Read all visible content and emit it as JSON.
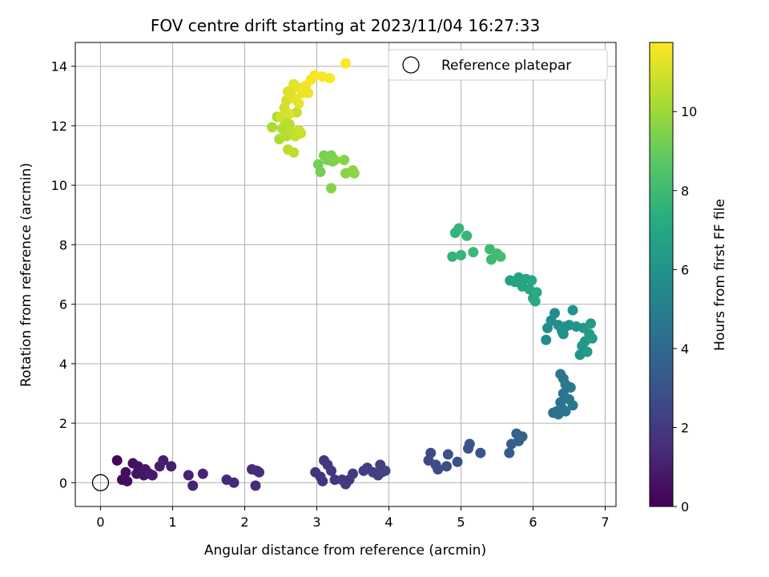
{
  "chart_data": {
    "type": "scatter",
    "title": "FOV centre drift starting at 2023/11/04 16:27:33",
    "xlabel": "Angular distance from reference (arcmin)",
    "ylabel": "Rotation from reference (arcmin)",
    "xlim": [
      -0.35,
      7.15
    ],
    "ylim": [
      -0.8,
      14.8
    ],
    "xticks": [
      0,
      1,
      2,
      3,
      4,
      5,
      6,
      7
    ],
    "yticks": [
      0,
      2,
      4,
      6,
      8,
      10,
      12,
      14
    ],
    "grid": true,
    "legend": {
      "placement": "top-right",
      "entries": [
        "Reference platepar"
      ]
    },
    "reference_point": {
      "x": 0,
      "y": 0
    },
    "colorbar": {
      "label": "Hours from first FF file",
      "range": [
        0,
        11.75
      ],
      "ticks": [
        0,
        2,
        4,
        6,
        8,
        10
      ],
      "colormap": "viridis"
    },
    "points": [
      [
        0.23,
        0.75,
        0.2
      ],
      [
        0.3,
        0.1,
        0.3
      ],
      [
        0.35,
        0.35,
        0.4
      ],
      [
        0.37,
        0.05,
        0.4
      ],
      [
        0.45,
        0.65,
        0.5
      ],
      [
        0.5,
        0.3,
        0.6
      ],
      [
        0.52,
        0.55,
        0.6
      ],
      [
        0.6,
        0.25,
        0.7
      ],
      [
        0.62,
        0.45,
        0.75
      ],
      [
        0.68,
        0.3,
        0.8
      ],
      [
        0.72,
        0.25,
        0.85
      ],
      [
        0.82,
        0.55,
        0.9
      ],
      [
        0.87,
        0.75,
        0.95
      ],
      [
        0.98,
        0.55,
        1.0
      ],
      [
        1.22,
        0.25,
        1.1
      ],
      [
        1.28,
        -0.1,
        1.15
      ],
      [
        1.42,
        0.3,
        1.2
      ],
      [
        1.75,
        0.1,
        1.3
      ],
      [
        1.85,
        0.0,
        1.35
      ],
      [
        2.1,
        0.45,
        1.4
      ],
      [
        2.15,
        -0.1,
        1.45
      ],
      [
        2.17,
        0.4,
        1.5
      ],
      [
        2.2,
        0.35,
        1.5
      ],
      [
        2.98,
        0.35,
        1.7
      ],
      [
        3.05,
        0.2,
        1.75
      ],
      [
        3.08,
        0.05,
        1.8
      ],
      [
        3.1,
        0.75,
        1.8
      ],
      [
        3.15,
        0.6,
        1.85
      ],
      [
        3.2,
        0.4,
        1.9
      ],
      [
        3.25,
        0.1,
        1.9
      ],
      [
        3.35,
        0.1,
        1.95
      ],
      [
        3.4,
        -0.05,
        2.0
      ],
      [
        3.45,
        0.1,
        2.0
      ],
      [
        3.5,
        0.3,
        2.05
      ],
      [
        3.65,
        0.4,
        2.1
      ],
      [
        3.7,
        0.5,
        2.15
      ],
      [
        3.78,
        0.35,
        2.2
      ],
      [
        3.85,
        0.25,
        2.2
      ],
      [
        3.88,
        0.6,
        2.25
      ],
      [
        3.9,
        0.35,
        2.3
      ],
      [
        3.95,
        0.4,
        2.35
      ],
      [
        4.55,
        0.75,
        2.6
      ],
      [
        4.58,
        1.0,
        2.65
      ],
      [
        4.65,
        0.6,
        2.7
      ],
      [
        4.68,
        0.45,
        2.75
      ],
      [
        4.8,
        0.55,
        2.8
      ],
      [
        4.82,
        0.95,
        2.85
      ],
      [
        4.95,
        0.7,
        2.9
      ],
      [
        5.1,
        1.15,
        3.0
      ],
      [
        5.12,
        1.3,
        3.05
      ],
      [
        5.27,
        1.0,
        3.1
      ],
      [
        5.67,
        1.0,
        3.5
      ],
      [
        5.7,
        1.3,
        3.55
      ],
      [
        5.77,
        1.65,
        3.6
      ],
      [
        5.8,
        1.4,
        3.65
      ],
      [
        5.85,
        1.55,
        3.7
      ],
      [
        6.28,
        2.35,
        4.3
      ],
      [
        6.33,
        2.4,
        4.35
      ],
      [
        6.35,
        2.3,
        4.4
      ],
      [
        6.38,
        2.7,
        4.4
      ],
      [
        6.4,
        2.5,
        4.45
      ],
      [
        6.42,
        3.0,
        4.5
      ],
      [
        6.42,
        3.5,
        4.55
      ],
      [
        6.45,
        2.4,
        4.55
      ],
      [
        6.38,
        3.65,
        4.6
      ],
      [
        6.45,
        3.3,
        4.65
      ],
      [
        6.5,
        2.8,
        4.7
      ],
      [
        6.52,
        3.2,
        4.75
      ],
      [
        6.55,
        2.6,
        4.8
      ],
      [
        6.18,
        4.8,
        5.6
      ],
      [
        6.2,
        5.2,
        5.65
      ],
      [
        6.25,
        5.45,
        5.7
      ],
      [
        6.3,
        5.7,
        5.75
      ],
      [
        6.35,
        5.3,
        5.8
      ],
      [
        6.4,
        5.1,
        5.85
      ],
      [
        6.42,
        5.0,
        5.9
      ],
      [
        6.45,
        5.25,
        5.9
      ],
      [
        6.5,
        5.3,
        5.95
      ],
      [
        6.55,
        5.8,
        6.0
      ],
      [
        6.6,
        5.25,
        6.05
      ],
      [
        6.65,
        4.3,
        6.1
      ],
      [
        6.68,
        4.6,
        6.15
      ],
      [
        6.7,
        5.2,
        6.2
      ],
      [
        6.72,
        4.75,
        6.25
      ],
      [
        6.75,
        4.4,
        6.3
      ],
      [
        6.78,
        5.0,
        6.35
      ],
      [
        6.8,
        5.35,
        6.4
      ],
      [
        6.82,
        4.85,
        6.45
      ],
      [
        5.68,
        6.8,
        6.7
      ],
      [
        5.75,
        6.75,
        6.75
      ],
      [
        5.8,
        6.9,
        6.8
      ],
      [
        5.85,
        6.6,
        6.85
      ],
      [
        5.9,
        6.85,
        6.9
      ],
      [
        5.95,
        6.5,
        6.95
      ],
      [
        5.98,
        6.8,
        7.0
      ],
      [
        6.0,
        6.2,
        7.05
      ],
      [
        6.03,
        6.1,
        7.1
      ],
      [
        6.05,
        6.4,
        7.15
      ],
      [
        4.88,
        7.6,
        7.6
      ],
      [
        4.92,
        8.4,
        7.65
      ],
      [
        4.97,
        8.55,
        7.7
      ],
      [
        5.0,
        7.65,
        7.75
      ],
      [
        5.08,
        8.3,
        7.8
      ],
      [
        5.17,
        7.75,
        7.85
      ],
      [
        5.4,
        7.85,
        7.95
      ],
      [
        5.42,
        7.5,
        8.0
      ],
      [
        5.5,
        7.7,
        8.05
      ],
      [
        5.55,
        7.6,
        8.1
      ],
      [
        3.02,
        10.7,
        9.2
      ],
      [
        3.05,
        10.45,
        9.25
      ],
      [
        3.1,
        11.0,
        9.3
      ],
      [
        3.15,
        10.85,
        9.3
      ],
      [
        3.2,
        11.0,
        9.35
      ],
      [
        3.22,
        10.8,
        9.4
      ],
      [
        3.25,
        10.85,
        9.45
      ],
      [
        3.2,
        9.9,
        9.5
      ],
      [
        3.38,
        10.85,
        9.55
      ],
      [
        3.4,
        10.4,
        9.6
      ],
      [
        3.5,
        10.5,
        9.65
      ],
      [
        3.52,
        10.4,
        9.7
      ],
      [
        2.38,
        11.95,
        10.2
      ],
      [
        2.45,
        12.3,
        10.25
      ],
      [
        2.48,
        11.55,
        10.3
      ],
      [
        2.52,
        11.9,
        10.35
      ],
      [
        2.55,
        12.2,
        10.4
      ],
      [
        2.58,
        11.65,
        10.45
      ],
      [
        2.6,
        11.2,
        10.5
      ],
      [
        2.62,
        12.05,
        10.5
      ],
      [
        2.65,
        11.8,
        10.55
      ],
      [
        2.68,
        11.1,
        10.6
      ],
      [
        2.7,
        11.65,
        10.65
      ],
      [
        2.72,
        12.45,
        10.7
      ],
      [
        2.75,
        11.85,
        10.75
      ],
      [
        2.78,
        11.75,
        10.8
      ],
      [
        2.5,
        12.3,
        10.9
      ],
      [
        2.55,
        12.6,
        10.95
      ],
      [
        2.58,
        12.85,
        11.0
      ],
      [
        2.6,
        13.15,
        11.05
      ],
      [
        2.62,
        12.4,
        11.1
      ],
      [
        2.65,
        13.0,
        11.15
      ],
      [
        2.68,
        13.4,
        11.2
      ],
      [
        2.7,
        12.9,
        11.25
      ],
      [
        2.72,
        13.3,
        11.3
      ],
      [
        2.75,
        12.75,
        11.35
      ],
      [
        2.8,
        13.1,
        11.4
      ],
      [
        2.82,
        13.3,
        11.45
      ],
      [
        2.85,
        13.35,
        11.5
      ],
      [
        2.88,
        13.1,
        11.5
      ],
      [
        2.92,
        13.55,
        11.55
      ],
      [
        2.97,
        13.7,
        11.6
      ],
      [
        3.08,
        13.65,
        11.65
      ],
      [
        3.18,
        13.6,
        11.7
      ],
      [
        3.4,
        14.1,
        11.75
      ]
    ]
  }
}
